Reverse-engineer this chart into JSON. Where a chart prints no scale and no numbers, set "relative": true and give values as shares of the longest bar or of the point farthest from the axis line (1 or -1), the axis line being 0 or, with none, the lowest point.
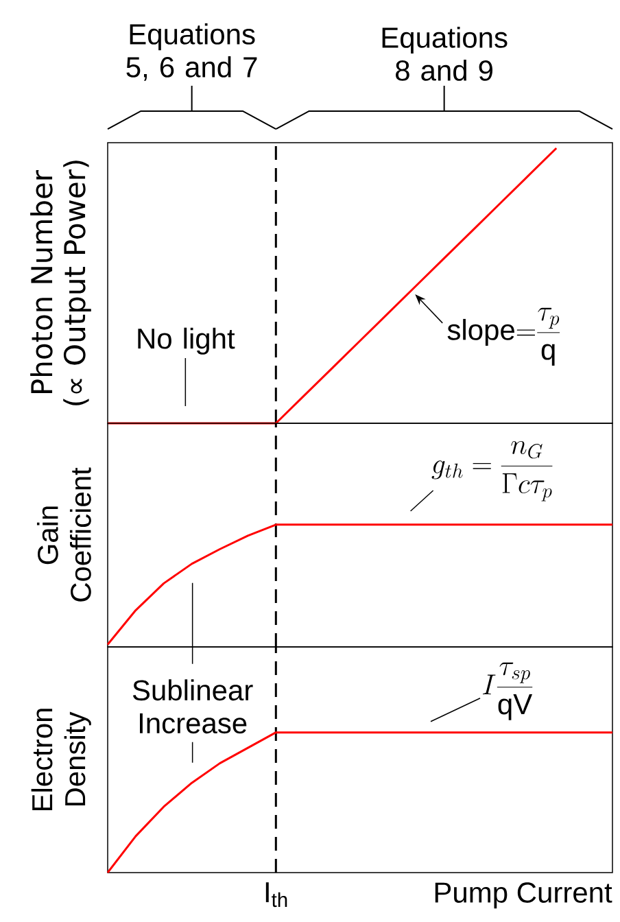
{
  "chart_data": [
    {
      "type": "line",
      "relative": true,
      "ylabel": "Photon Number (∝ Output Power)",
      "tick_labels": false,
      "categories": [
        null,
        null,
        null,
        null,
        null,
        null,
        null,
        null,
        null,
        null,
        null,
        null,
        null,
        null,
        null,
        null,
        null,
        null,
        null
      ],
      "series": [
        {
          "color": "#ff0000",
          "values": [
            0,
            0,
            0,
            0,
            0,
            0,
            0,
            0.1,
            0.2,
            0.3,
            0.4,
            0.5,
            0.6,
            0.7,
            0.8,
            0.9,
            1,
            null,
            null
          ]
        }
      ],
      "annotations": [
        "Equations 5, 6 and 7",
        "Equations 8 and 9",
        "No light",
        "\\mathrm{slope}{=}\\dfrac{\\tau_p}{\\mathrm{q}}"
      ]
    },
    {
      "type": "line",
      "relative": true,
      "ylabel": "Gain Coefficient",
      "tick_labels": false,
      "categories": [
        null,
        null,
        null,
        null,
        null,
        null,
        null,
        null,
        null,
        null,
        null,
        null,
        null,
        null,
        null,
        null,
        null,
        null,
        null
      ],
      "series": [
        {
          "color": "#ff0000",
          "values": [
            0.02,
            0.3,
            0.52,
            0.68,
            0.8,
            0.91,
            1,
            1,
            1,
            1,
            1,
            1,
            1,
            1,
            1,
            1,
            1,
            1,
            1
          ]
        }
      ],
      "annotations": [
        "g_{th}=\\dfrac{n_G}{\\Gamma c\\tau_p}"
      ]
    },
    {
      "type": "line",
      "relative": true,
      "ylabel": "Electron Density",
      "xlabel": "Pump Current",
      "tick_labels": false,
      "categories": [
        null,
        null,
        null,
        null,
        null,
        null,
        null,
        null,
        null,
        null,
        null,
        null,
        null,
        null,
        null,
        null,
        null,
        null,
        null
      ],
      "series": [
        {
          "color": "#ff0000",
          "values": [
            0,
            0.26,
            0.47,
            0.64,
            0.78,
            0.89,
            1,
            1,
            1,
            1,
            1,
            1,
            1,
            1,
            1,
            1,
            1,
            1,
            1
          ]
        }
      ],
      "annotations": [
        "Sublinear Increase",
        "I\\dfrac{\\tau_{sp}}{\\mathrm{qV}}",
        "I$_{th}$"
      ]
    }
  ]
}
